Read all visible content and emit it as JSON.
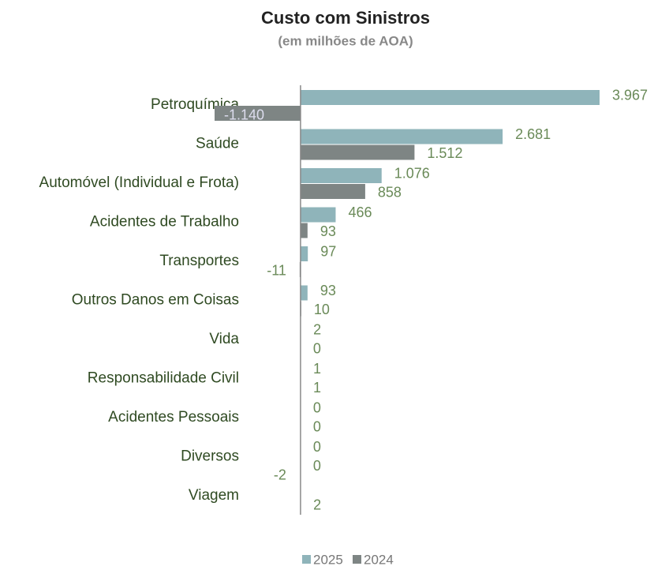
{
  "chart_data": {
    "type": "bar",
    "orientation": "horizontal",
    "title": "Custo com Sinistros",
    "subtitle": "(em milhões de AOA)",
    "categories": [
      "Petroquímica",
      "Saúde",
      "Automóvel (Individual e Frota)",
      "Acidentes de Trabalho",
      "Transportes",
      "Outros Danos em Coisas",
      "Vida",
      "Responsabilidade Civil",
      "Acidentes Pessoais",
      "Diversos",
      "Viagem"
    ],
    "series": [
      {
        "name": "2025",
        "color": "#8fb4ba",
        "values": [
          3967,
          2681,
          1076,
          466,
          97,
          93,
          2,
          1,
          0,
          0,
          -2
        ],
        "value_labels": [
          "3.967",
          "2.681",
          "1.076",
          "466",
          "97",
          "93",
          "2",
          "1",
          "0",
          "0",
          "-2"
        ]
      },
      {
        "name": "2024",
        "color": "#7e8584",
        "values": [
          -1140,
          1512,
          858,
          93,
          -11,
          10,
          0,
          1,
          0,
          0,
          2
        ],
        "value_labels": [
          "-1.140",
          "1.512",
          "858",
          "93",
          "-11",
          "10",
          "0",
          "1",
          "0",
          "0",
          "2"
        ]
      }
    ]
  }
}
